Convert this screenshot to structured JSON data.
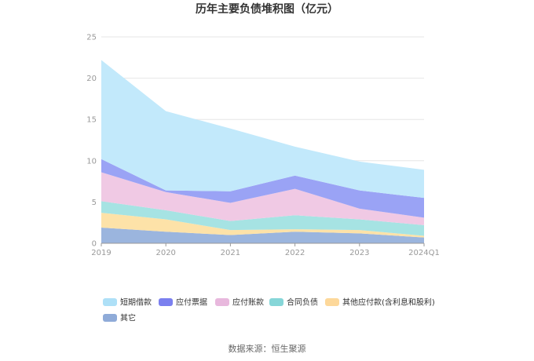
{
  "chart_data": {
    "type": "area",
    "stacked": true,
    "title": "历年主要负债堆积图（亿元）",
    "x": [
      "2019",
      "2020",
      "2021",
      "2022",
      "2023",
      "2024Q1"
    ],
    "ylim": [
      0,
      25
    ],
    "yticks": [
      0,
      5,
      10,
      15,
      20,
      25
    ],
    "grid": true,
    "legend_position": "bottom",
    "series": [
      {
        "name": "其它",
        "color": "#9bb5de",
        "values": [
          1.9,
          1.4,
          1.0,
          1.4,
          1.2,
          0.7
        ]
      },
      {
        "name": "其他应付款(含利息和股利)",
        "color": "#fde2a8",
        "values": [
          1.8,
          1.5,
          0.6,
          0.3,
          0.4,
          0.2
        ]
      },
      {
        "name": "合同负债",
        "color": "#a6e3e3",
        "values": [
          1.4,
          1.1,
          1.1,
          1.7,
          1.3,
          1.3
        ]
      },
      {
        "name": "应付账款",
        "color": "#f0c9e4",
        "values": [
          3.5,
          2.2,
          2.2,
          3.2,
          1.3,
          0.9
        ]
      },
      {
        "name": "应付票据",
        "color": "#9aa3f5",
        "values": [
          1.6,
          0.2,
          1.4,
          1.6,
          2.2,
          2.4
        ]
      },
      {
        "name": "短期借款",
        "color": "#c2e9fb",
        "values": [
          12.0,
          9.6,
          7.6,
          3.5,
          3.5,
          3.4
        ]
      }
    ],
    "legend_colors": {
      "短期借款": "#aee0f7",
      "应付票据": "#7b80ef",
      "应付账款": "#e8b8dd",
      "合同负债": "#86d6d8",
      "其他应付款(含利息和股利)": "#fdd89a",
      "其它": "#8fabd8"
    },
    "legend_order": [
      "短期借款",
      "应付票据",
      "应付账款",
      "合同负债",
      "其他应付款(含利息和股利)",
      "其它"
    ],
    "source": "数据来源：恒生聚源"
  }
}
